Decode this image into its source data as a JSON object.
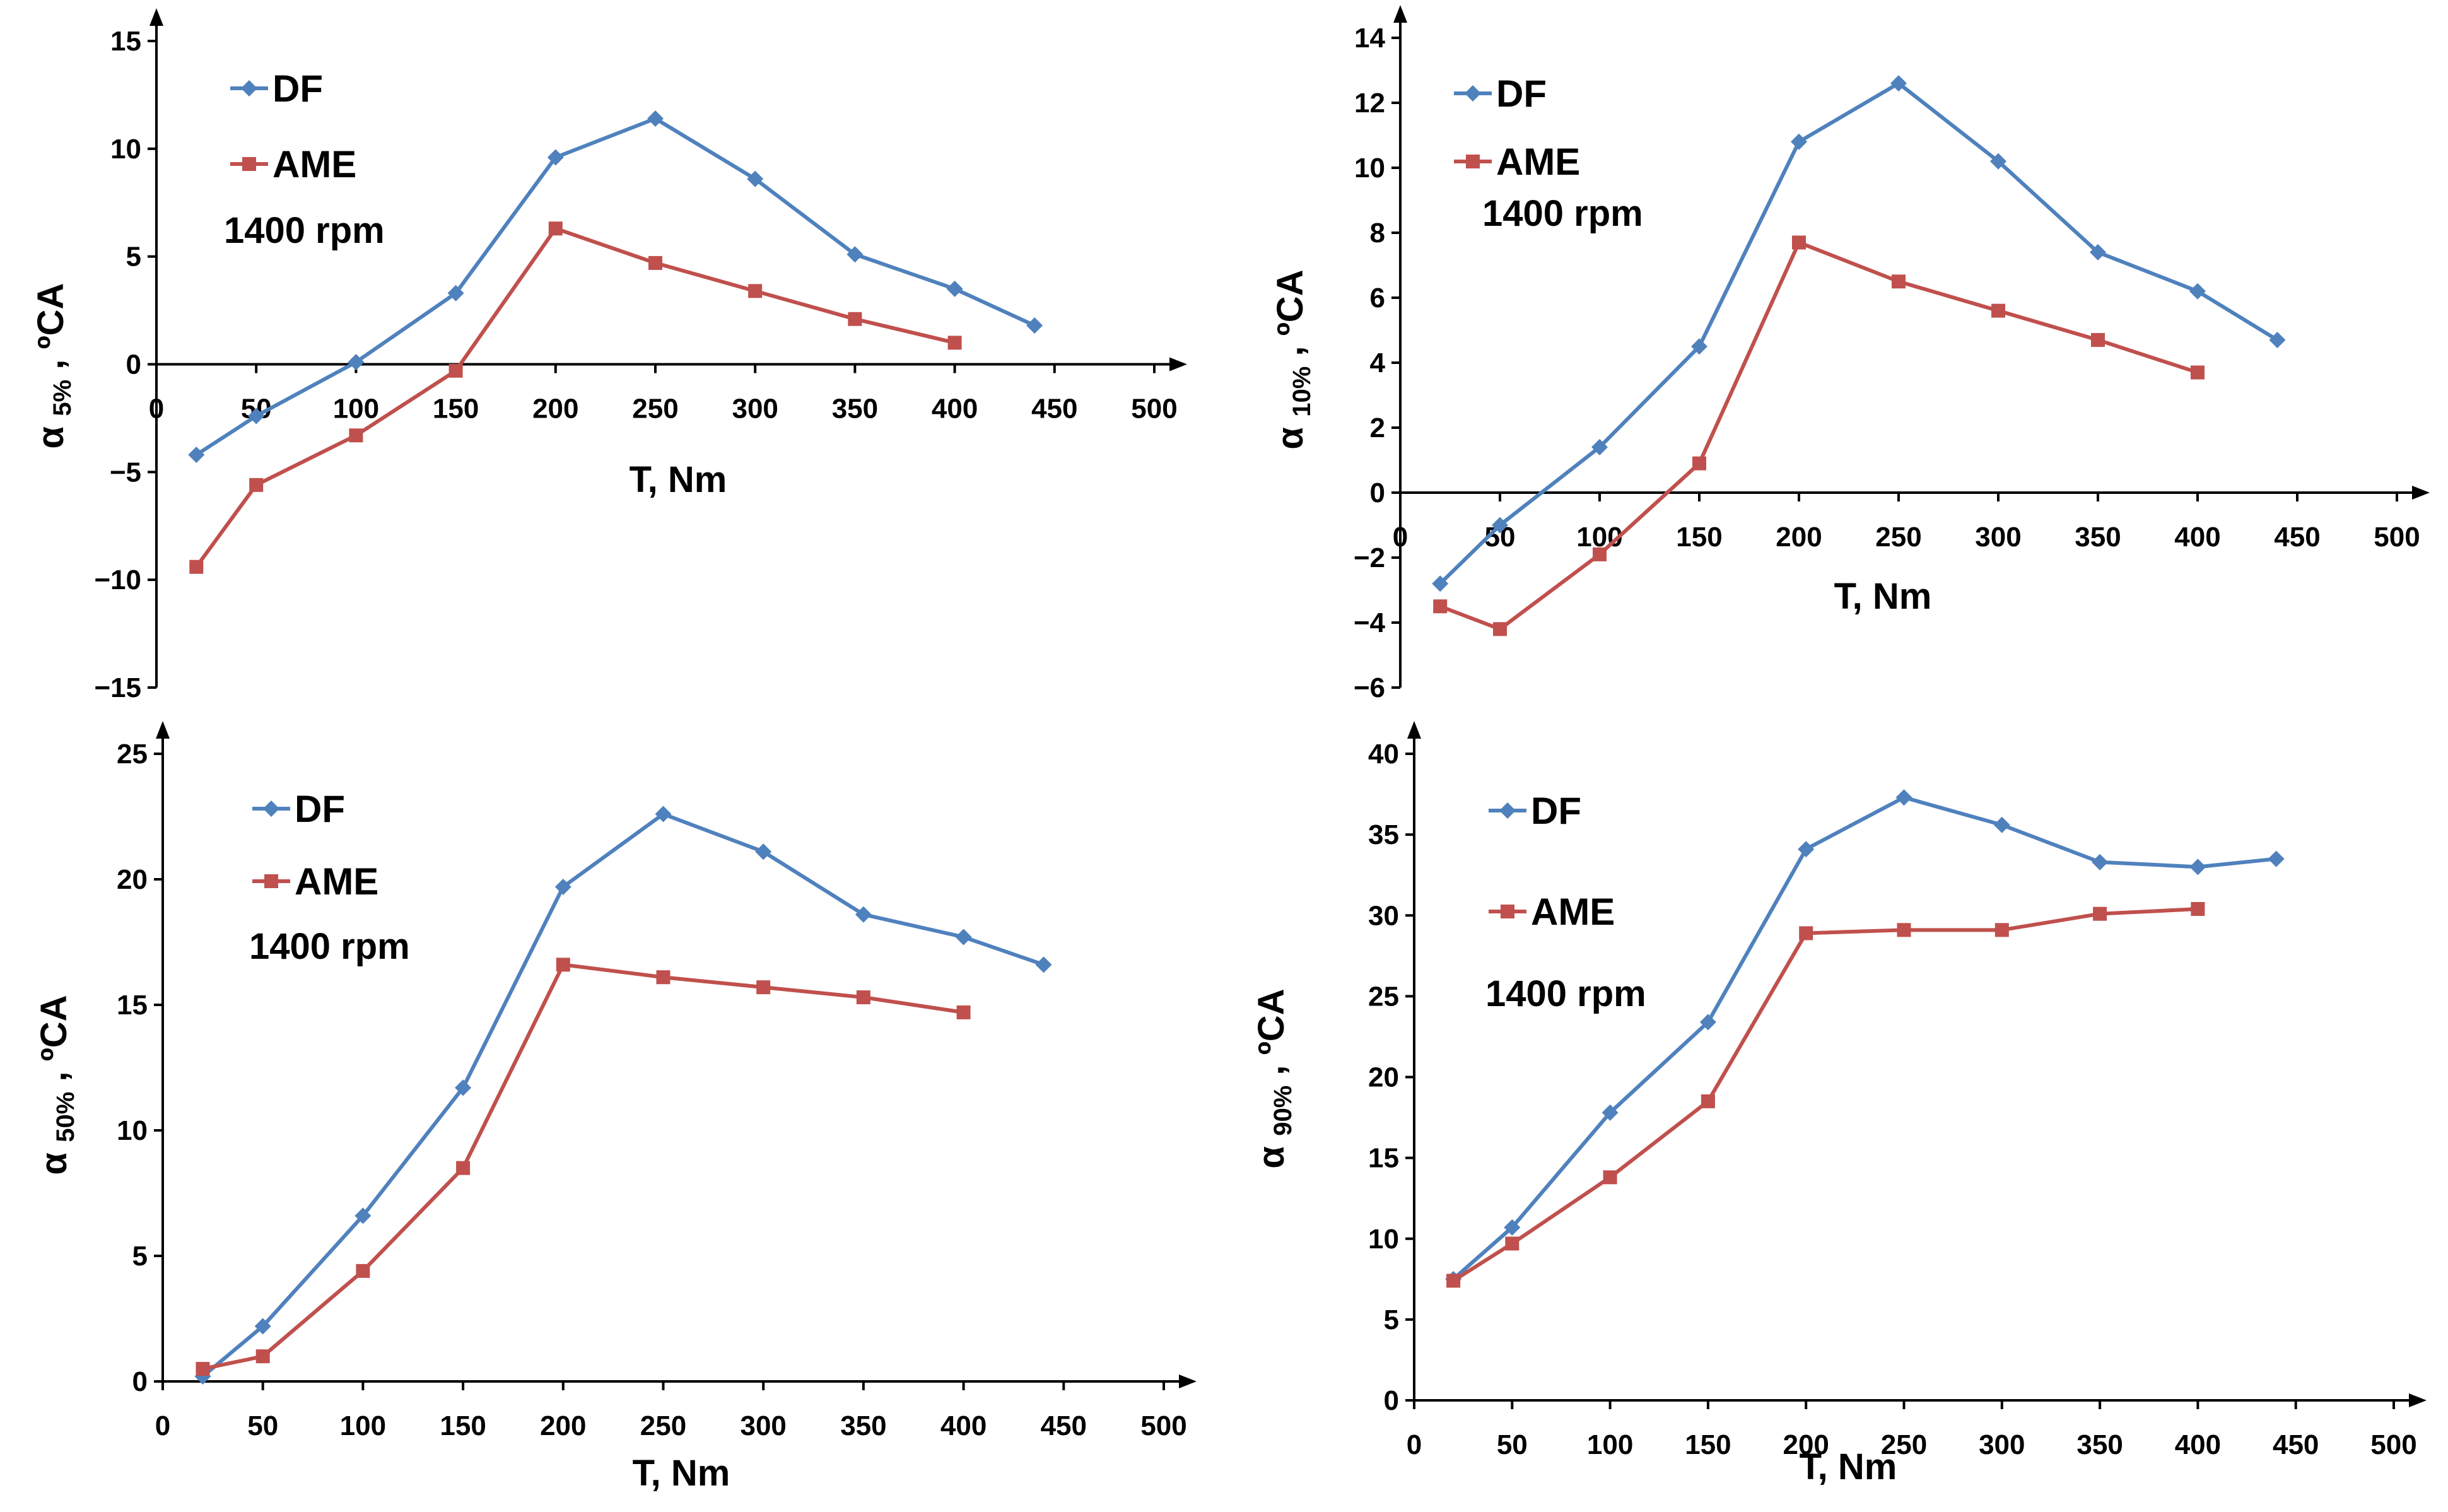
{
  "chart_data": [
    {
      "type": "line",
      "panel": "top-left",
      "xlabel": "T, Nm",
      "ylabel": {
        "symbol": "α",
        "sub": "5%",
        "unit": " , ºCA"
      },
      "xlim": [
        0,
        500
      ],
      "ylim": [
        -15,
        15
      ],
      "xticks": [
        0,
        50,
        100,
        150,
        200,
        250,
        300,
        350,
        400,
        450,
        500
      ],
      "yticks": [
        -15,
        -10,
        -5,
        0,
        5,
        10,
        15
      ],
      "x_axis_at": 0,
      "annotation": "1400 rpm",
      "legend_position": "top-left",
      "series": [
        {
          "name": "DF",
          "color": "#4F81BD",
          "marker": "diamond",
          "x": [
            20,
            50,
            100,
            150,
            200,
            250,
            300,
            350,
            400,
            440
          ],
          "y": [
            -4.2,
            -2.4,
            0.1,
            3.3,
            9.6,
            11.4,
            8.6,
            5.1,
            3.5,
            1.8
          ]
        },
        {
          "name": "AME",
          "color": "#C0504D",
          "marker": "square",
          "x": [
            20,
            50,
            100,
            150,
            200,
            250,
            300,
            350,
            400
          ],
          "y": [
            -9.4,
            -5.6,
            -3.3,
            -0.3,
            6.3,
            4.7,
            3.4,
            2.1,
            1.0
          ]
        }
      ]
    },
    {
      "type": "line",
      "panel": "top-right",
      "xlabel": "T, Nm",
      "ylabel": {
        "symbol": "α",
        "sub": "10%",
        "unit": " , ºCA"
      },
      "xlim": [
        0,
        500
      ],
      "ylim": [
        -6,
        14
      ],
      "xticks": [
        0,
        50,
        100,
        150,
        200,
        250,
        300,
        350,
        400,
        450,
        500
      ],
      "yticks": [
        -6,
        -4,
        -2,
        0,
        2,
        4,
        6,
        8,
        10,
        12,
        14
      ],
      "x_axis_at": 0,
      "annotation": "1400 rpm",
      "legend_position": "top-left",
      "series": [
        {
          "name": "DF",
          "color": "#4F81BD",
          "marker": "diamond",
          "x": [
            20,
            50,
            100,
            150,
            200,
            250,
            300,
            350,
            400,
            440
          ],
          "y": [
            -2.8,
            -1.0,
            1.4,
            4.5,
            10.8,
            12.6,
            10.2,
            7.4,
            6.2,
            4.7
          ]
        },
        {
          "name": "AME",
          "color": "#C0504D",
          "marker": "square",
          "x": [
            20,
            50,
            100,
            150,
            200,
            250,
            300,
            350,
            400
          ],
          "y": [
            -3.5,
            -4.2,
            -1.9,
            0.9,
            7.7,
            6.5,
            5.6,
            4.7,
            3.7
          ]
        }
      ]
    },
    {
      "type": "line",
      "panel": "bottom-left",
      "xlabel": "T, Nm",
      "ylabel": {
        "symbol": "α",
        "sub": "50%",
        "unit": " , ºCA"
      },
      "xlim": [
        0,
        500
      ],
      "ylim": [
        0,
        25
      ],
      "xticks": [
        0,
        50,
        100,
        150,
        200,
        250,
        300,
        350,
        400,
        450,
        500
      ],
      "yticks": [
        0,
        5,
        10,
        15,
        20,
        25
      ],
      "x_axis_at": 0,
      "annotation": "1400 rpm",
      "legend_position": "top-left",
      "series": [
        {
          "name": "DF",
          "color": "#4F81BD",
          "marker": "diamond",
          "x": [
            20,
            50,
            100,
            150,
            200,
            250,
            300,
            350,
            400,
            440
          ],
          "y": [
            0.2,
            2.2,
            6.6,
            11.7,
            19.7,
            22.6,
            21.1,
            18.6,
            17.7,
            16.6
          ]
        },
        {
          "name": "AME",
          "color": "#C0504D",
          "marker": "square",
          "x": [
            20,
            50,
            100,
            150,
            200,
            250,
            300,
            350,
            400
          ],
          "y": [
            0.5,
            1.0,
            4.4,
            8.5,
            16.6,
            16.1,
            15.7,
            15.3,
            14.7
          ]
        }
      ]
    },
    {
      "type": "line",
      "panel": "bottom-right",
      "xlabel": "T, Nm",
      "ylabel": {
        "symbol": "α",
        "sub": "90%",
        "unit": " , ºCA"
      },
      "xlim": [
        0,
        500
      ],
      "ylim": [
        0,
        40
      ],
      "xticks": [
        0,
        50,
        100,
        150,
        200,
        250,
        300,
        350,
        400,
        450,
        500
      ],
      "yticks": [
        0,
        5,
        10,
        15,
        20,
        25,
        30,
        35,
        40
      ],
      "x_axis_at": 0,
      "annotation": "1400 rpm",
      "legend_position": "top-left",
      "series": [
        {
          "name": "DF",
          "color": "#4F81BD",
          "marker": "diamond",
          "x": [
            20,
            50,
            100,
            150,
            200,
            250,
            300,
            350,
            400,
            440
          ],
          "y": [
            7.5,
            10.7,
            17.8,
            23.4,
            34.1,
            37.3,
            35.6,
            33.3,
            33.0,
            33.5
          ]
        },
        {
          "name": "AME",
          "color": "#C0504D",
          "marker": "square",
          "x": [
            20,
            50,
            100,
            150,
            200,
            250,
            300,
            350,
            400
          ],
          "y": [
            7.4,
            9.7,
            13.8,
            18.5,
            28.9,
            29.1,
            29.1,
            30.1,
            30.4
          ]
        }
      ]
    }
  ]
}
